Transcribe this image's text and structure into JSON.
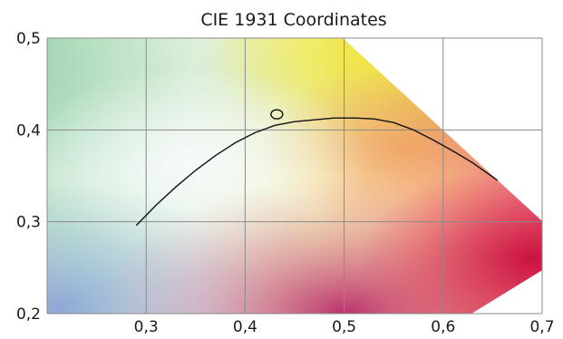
{
  "chart_data": {
    "type": "line",
    "title": "CIE 1931 Coordinates",
    "xlabel": "",
    "ylabel": "",
    "xlim": [
      0.2,
      0.7
    ],
    "ylim": [
      0.2,
      0.5
    ],
    "grid": true,
    "x_ticks": [
      {
        "value": 0.3,
        "label": "0,3"
      },
      {
        "value": 0.4,
        "label": "0,4"
      },
      {
        "value": 0.5,
        "label": "0,5"
      },
      {
        "value": 0.6,
        "label": "0,6"
      },
      {
        "value": 0.7,
        "label": "0,7"
      }
    ],
    "y_ticks": [
      {
        "value": 0.2,
        "label": "0,2"
      },
      {
        "value": 0.3,
        "label": "0,3"
      },
      {
        "value": 0.4,
        "label": "0,4"
      },
      {
        "value": 0.5,
        "label": "0,5"
      }
    ],
    "series": [
      {
        "x": [
          0.29,
          0.31,
          0.33,
          0.35,
          0.37,
          0.39,
          0.41,
          0.43,
          0.45,
          0.47,
          0.49,
          0.51,
          0.53,
          0.55,
          0.57,
          0.59,
          0.61,
          0.63,
          0.655
        ],
        "y": [
          0.296,
          0.318,
          0.338,
          0.356,
          0.372,
          0.386,
          0.397,
          0.405,
          0.409,
          0.411,
          0.413,
          0.413,
          0.412,
          0.408,
          0.4,
          0.389,
          0.377,
          0.364,
          0.345
        ]
      }
    ],
    "points": [
      {
        "x": 0.432,
        "y": 0.417,
        "shape": "circle"
      }
    ],
    "background": "CIE 1931 chromaticity diagram",
    "colors": {
      "curve": "#111111",
      "grid": "#8a8a8a"
    }
  }
}
